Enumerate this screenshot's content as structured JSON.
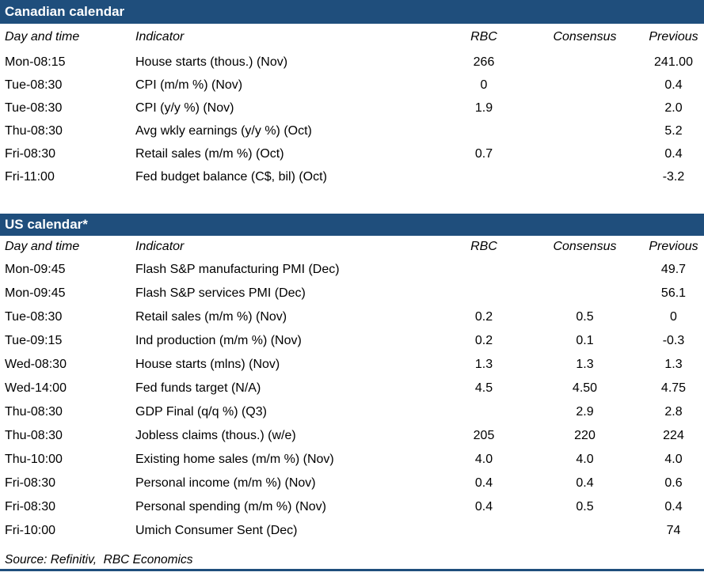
{
  "colors": {
    "section_header_bg": "#1F4E7C",
    "section_header_text": "#FFFFFF",
    "body_text": "#000000",
    "bottom_rule": "#1F4E7C"
  },
  "columns": [
    "Day and time",
    "Indicator",
    "RBC",
    "Consensus",
    "Previous"
  ],
  "sections": [
    {
      "title": "Canadian calendar",
      "rows": [
        {
          "day": "Mon-08:15",
          "indicator": "House starts (thous.) (Nov)",
          "rbc": "266",
          "consensus": "",
          "previous": "241.00"
        },
        {
          "day": "Tue-08:30",
          "indicator": "CPI (m/m %) (Nov)",
          "rbc": "0",
          "consensus": "",
          "previous": "0.4"
        },
        {
          "day": "Tue-08:30",
          "indicator": "CPI (y/y %) (Nov)",
          "rbc": "1.9",
          "consensus": "",
          "previous": "2.0"
        },
        {
          "day": "Thu-08:30",
          "indicator": "Avg wkly earnings (y/y %) (Oct)",
          "rbc": "",
          "consensus": "",
          "previous": "5.2"
        },
        {
          "day": "Fri-08:30",
          "indicator": "Retail sales (m/m %) (Oct)",
          "rbc": "0.7",
          "consensus": "",
          "previous": "0.4"
        },
        {
          "day": "Fri-11:00",
          "indicator": "Fed budget balance (C$, bil) (Oct)",
          "rbc": "",
          "consensus": "",
          "previous": "-3.2"
        }
      ]
    },
    {
      "title": "US calendar*",
      "rows": [
        {
          "day": "Mon-09:45",
          "indicator": "Flash S&P manufacturing PMI (Dec)",
          "rbc": "",
          "consensus": "",
          "previous": "49.7"
        },
        {
          "day": "Mon-09:45",
          "indicator": "Flash S&P services PMI (Dec)",
          "rbc": "",
          "consensus": "",
          "previous": "56.1"
        },
        {
          "day": "Tue-08:30",
          "indicator": "Retail sales (m/m %) (Nov)",
          "rbc": "0.2",
          "consensus": "0.5",
          "previous": "0"
        },
        {
          "day": "Tue-09:15",
          "indicator": "Ind production (m/m %) (Nov)",
          "rbc": "0.2",
          "consensus": "0.1",
          "previous": "-0.3"
        },
        {
          "day": "Wed-08:30",
          "indicator": "House starts (mlns) (Nov)",
          "rbc": "1.3",
          "consensus": "1.3",
          "previous": "1.3"
        },
        {
          "day": "Wed-14:00",
          "indicator": "Fed funds target (N/A)",
          "rbc": "4.5",
          "consensus": "4.50",
          "previous": "4.75"
        },
        {
          "day": "Thu-08:30",
          "indicator": "GDP Final (q/q %) (Q3)",
          "rbc": "",
          "consensus": "2.9",
          "previous": "2.8"
        },
        {
          "day": "Thu-08:30",
          "indicator": "Jobless claims (thous.) (w/e)",
          "rbc": "205",
          "consensus": "220",
          "previous": "224"
        },
        {
          "day": "Thu-10:00",
          "indicator": "Existing home sales (m/m %) (Nov)",
          "rbc": "4.0",
          "consensus": "4.0",
          "previous": "4.0"
        },
        {
          "day": "Fri-08:30",
          "indicator": "Personal income (m/m %) (Nov)",
          "rbc": "0.4",
          "consensus": "0.4",
          "previous": "0.6"
        },
        {
          "day": "Fri-08:30",
          "indicator": "Personal spending (m/m %) (Nov)",
          "rbc": "0.4",
          "consensus": "0.5",
          "previous": "0.4"
        },
        {
          "day": "Fri-10:00",
          "indicator": "Umich Consumer Sent (Dec)",
          "rbc": "",
          "consensus": "",
          "previous": "74"
        }
      ]
    }
  ],
  "footer": "Source: Refinitiv,  RBC Economics"
}
